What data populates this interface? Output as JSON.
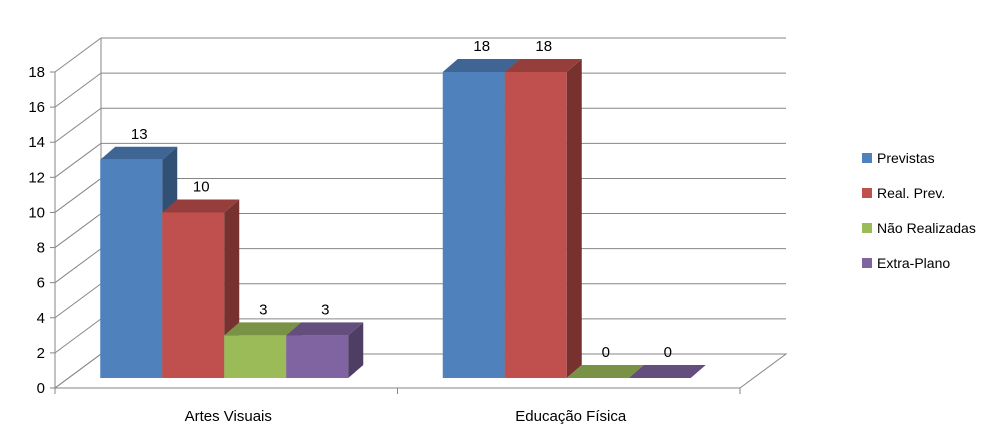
{
  "chart_data": {
    "type": "bar",
    "subtype": "3d-clustered-column",
    "title": "",
    "xlabel": "",
    "ylabel": "",
    "ylim": [
      0,
      18
    ],
    "yticks": [
      0,
      2,
      4,
      6,
      8,
      10,
      12,
      14,
      16,
      18
    ],
    "grid": true,
    "legend_position": "right",
    "categories": [
      "Artes Visuais",
      "Educação Física"
    ],
    "series": [
      {
        "name": "Previstas",
        "values": [
          13,
          18
        ],
        "color": "#4F81BD"
      },
      {
        "name": "Real. Prev.",
        "values": [
          10,
          18
        ],
        "color": "#C0504D"
      },
      {
        "name": "Não Realizadas",
        "values": [
          3,
          0
        ],
        "color": "#9BBB59"
      },
      {
        "name": "Extra-Plano",
        "values": [
          3,
          0
        ],
        "color": "#8064A2"
      }
    ]
  }
}
